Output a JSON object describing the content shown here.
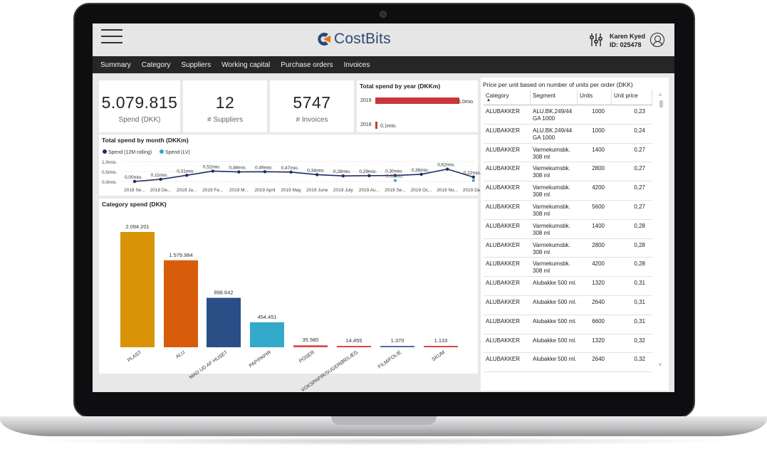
{
  "header": {
    "app_name": "CostBits",
    "user_name": "Karen Kyed",
    "user_id": "ID: 025478"
  },
  "nav": [
    "Summary",
    "Category",
    "Suppliers",
    "Working capital",
    "Purchase orders",
    "Invoices"
  ],
  "kpis": [
    {
      "value": "5.079.815",
      "label": "Spend (DKK)"
    },
    {
      "value": "12",
      "label": "# Suppliers"
    },
    {
      "value": "5747",
      "label": "# Invoices"
    }
  ],
  "colors": {
    "navbar": "#262626",
    "brand": "#2c4a74",
    "accent_orange": "#e8731e",
    "line": "#1f2d63",
    "lv": "#2aa8d6"
  },
  "chart_data": [
    {
      "type": "bar",
      "title": "Total spend by year (DKKm)",
      "categories": [
        "2019",
        "2018"
      ],
      "values": [
        5.0,
        0.1
      ],
      "value_labels": [
        "5,0mio.",
        "0,1mio."
      ],
      "orientation": "horizontal",
      "color": "#c8373b"
    },
    {
      "type": "line",
      "title": "Total spend by month (DKKm)",
      "legend": [
        "Spend (12M rolling)",
        "Spend (LV)"
      ],
      "y_ticks": [
        "1,0mio.",
        "0,5mio.",
        "0,0mio."
      ],
      "ylim": [
        0,
        1.0
      ],
      "x": [
        "2018 Se...",
        "2018 De...",
        "2019 Ja...",
        "2019 Fe...",
        "2019 M...",
        "2019 April",
        "2019 May",
        "2019 June",
        "2019 July",
        "2019 Au...",
        "2019 Se...",
        "2019 Oc...",
        "2019 No...",
        "2019 De..."
      ],
      "series": [
        {
          "name": "Spend (12M rolling)",
          "values": [
            0.0,
            0.11,
            0.31,
            0.52,
            0.48,
            0.49,
            0.47,
            0.34,
            0.28,
            0.29,
            0.3,
            0.36,
            0.62,
            0.22
          ],
          "labels": [
            "0,00mio.",
            "0,11mio.",
            "0,31mio.",
            "0,52mio.",
            "0,48mio.",
            "0,49mio.",
            "0,47mio.",
            "0,34mio.",
            "0,28mio.",
            "0,29mio.",
            "0,30mio.",
            "0,36mio.",
            "0,62mio.",
            "0,22mio."
          ]
        },
        {
          "name": "Spend (LV)",
          "values": [
            null,
            null,
            null,
            null,
            null,
            null,
            null,
            null,
            null,
            null,
            0.05,
            null,
            null,
            0.05
          ],
          "labels": [
            "",
            "",
            "",
            "",
            "",
            "",
            "",
            "",
            "",
            "",
            "0,05mio.",
            "",
            "",
            ""
          ]
        }
      ]
    },
    {
      "type": "bar",
      "title": "Category spend (DKK)",
      "categories": [
        "PLAST",
        "ALU",
        "MAD UD AF HUSET",
        "PAP/PAPIR",
        "POSER",
        "VOKSPAPIR/SUGERØR/LÆG",
        "FILM/FOLIE",
        "SKUM"
      ],
      "values": [
        2094201,
        1579984,
        898642,
        454451,
        35580,
        14455,
        1370,
        1133
      ],
      "value_labels": [
        "2.094.201",
        "1.579.984",
        "898.642",
        "454.451",
        "35.580",
        "14.455",
        "1.370",
        "1.133"
      ],
      "colors": [
        "#d89406",
        "#d85d0a",
        "#2a4f86",
        "#35a9c9",
        "#e0474a",
        "#e0474a",
        "#4e6e9e",
        "#e0474a"
      ]
    }
  ],
  "table": {
    "title": "Price per unit based on number of units per order (DKK)",
    "columns": [
      "Category",
      "Segment",
      "Units",
      "Unit price"
    ],
    "rows": [
      [
        "ALUBAKKER",
        "ALU.BK.249/44 GA 1000",
        "1000",
        "0,23"
      ],
      [
        "ALUBAKKER",
        "ALU.BK.249/44 GA 1000",
        "1000",
        "0,24"
      ],
      [
        "ALUBAKKER",
        "Varmekumsbk. 308 ml",
        "1400",
        "0,27"
      ],
      [
        "ALUBAKKER",
        "Varmekumsbk. 308 ml",
        "2800",
        "0,27"
      ],
      [
        "ALUBAKKER",
        "Varmekumsbk. 308 ml",
        "4200",
        "0,27"
      ],
      [
        "ALUBAKKER",
        "Varmekumsbk. 308 ml",
        "5600",
        "0,27"
      ],
      [
        "ALUBAKKER",
        "Varmekumsbk. 308 ml",
        "1400",
        "0,28"
      ],
      [
        "ALUBAKKER",
        "Varmekumsbk. 308 ml",
        "2800",
        "0,28"
      ],
      [
        "ALUBAKKER",
        "Varmekumsbk. 308 ml",
        "4200",
        "0,28"
      ],
      [
        "ALUBAKKER",
        "Alubakke 500 ml.",
        "1320",
        "0,31"
      ],
      [
        "ALUBAKKER",
        "Alubakke 500 ml.",
        "2640",
        "0,31"
      ],
      [
        "ALUBAKKER",
        "Alubakke 500 ml.",
        "6600",
        "0,31"
      ],
      [
        "ALUBAKKER",
        "Alubakke 500 ml.",
        "1320",
        "0,32"
      ],
      [
        "ALUBAKKER",
        "Alubakke 500 ml.",
        "2640",
        "0,32"
      ]
    ]
  }
}
